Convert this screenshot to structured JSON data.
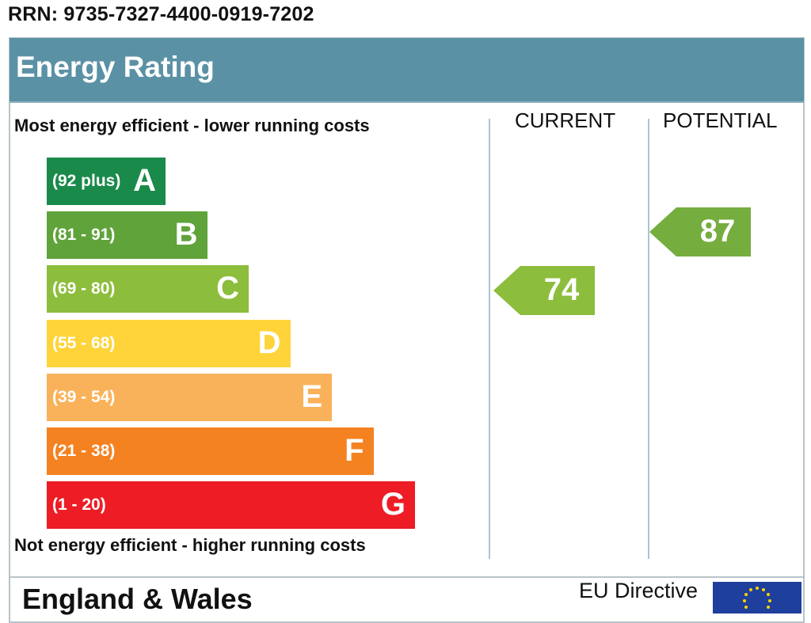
{
  "rrn": "RRN: 9735-7327-4400-0919-7202",
  "header": {
    "title": "Energy Rating"
  },
  "captions": {
    "top": "Most energy efficient - lower running costs",
    "bottom": "Not energy efficient - higher running costs"
  },
  "columns": {
    "current": "CURRENT",
    "potential": "POTENTIAL"
  },
  "footer": {
    "country": "England & Wales",
    "eu_directive": "EU Directive"
  },
  "chart_data": {
    "type": "bar",
    "bands": [
      {
        "range": "(92 plus)",
        "letter": "A",
        "color": "#1a8a4a"
      },
      {
        "range": "(81 - 91)",
        "letter": "B",
        "color": "#5fa33a"
      },
      {
        "range": "(69 - 80)",
        "letter": "C",
        "color": "#8dbd3c"
      },
      {
        "range": "(55 - 68)",
        "letter": "D",
        "color": "#ffd43a"
      },
      {
        "range": "(39 - 54)",
        "letter": "E",
        "color": "#f9b25a"
      },
      {
        "range": "(21 - 38)",
        "letter": "F",
        "color": "#f58220"
      },
      {
        "range": "(1 - 20)",
        "letter": "G",
        "color": "#ee1c24"
      }
    ],
    "ratings": [
      {
        "name": "CURRENT",
        "value": 74,
        "band": "C",
        "color": "#8dbd3c"
      },
      {
        "name": "POTENTIAL",
        "value": 87,
        "band": "B",
        "color": "#76ad3f"
      }
    ]
  }
}
